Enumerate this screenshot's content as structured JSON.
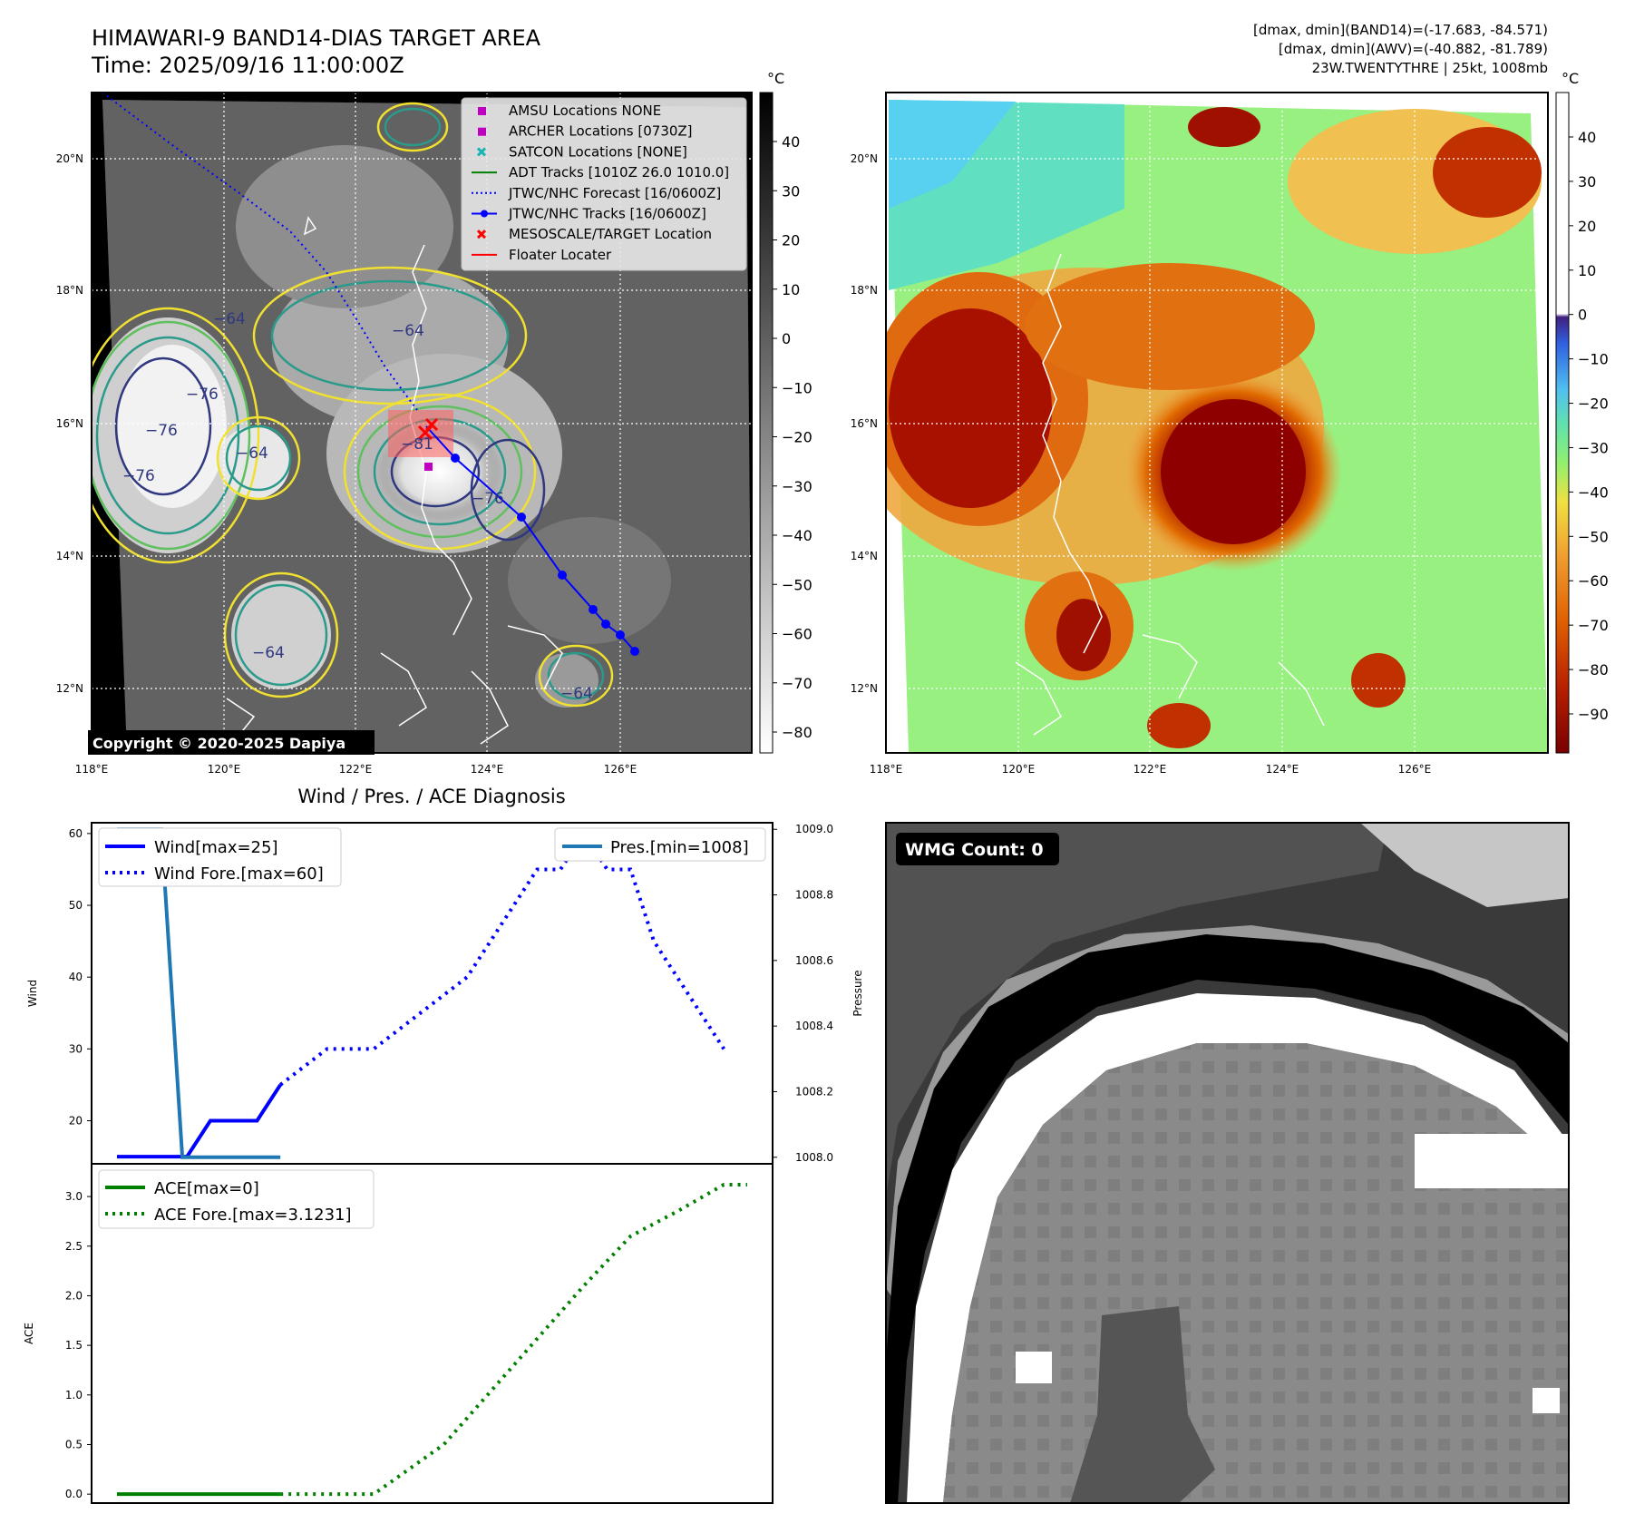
{
  "header": {
    "title_line1": "HIMAWARI-9 BAND14-DIAS TARGET AREA",
    "title_line2": "Time: 2025/09/16 11:00:00Z",
    "info_line1": "[dmax, dmin](BAND14)=(-17.683, -84.571)",
    "info_line2": "[dmax, dmin](AWV)=(-40.882, -81.789)",
    "info_line3": "23W.TWENTYTHRE | 25kt, 1008mb"
  },
  "map_ticks": {
    "lon": [
      "118°E",
      "120°E",
      "122°E",
      "124°E",
      "126°E"
    ],
    "lat": [
      "20°N",
      "18°N",
      "16°N",
      "14°N",
      "12°N"
    ]
  },
  "colorbar_ir": {
    "unit": "°C",
    "ticks": [
      "40",
      "30",
      "20",
      "10",
      "0",
      "−10",
      "−20",
      "−30",
      "−40",
      "−50",
      "−60",
      "−70",
      "−80"
    ]
  },
  "colorbar_wv": {
    "unit": "°C",
    "ticks": [
      "40",
      "30",
      "20",
      "10",
      "0",
      "−10",
      "−20",
      "−30",
      "−40",
      "−50",
      "−60",
      "−70",
      "−80",
      "−90"
    ]
  },
  "contour_labels": [
    "−64",
    "−76",
    "−76",
    "−76",
    "−64",
    "−64",
    "−81",
    "−76",
    "−64",
    "−64"
  ],
  "map_legend": {
    "entries": [
      {
        "label": "AMSU Locations NONE",
        "color": "#c000c0",
        "marker": "square"
      },
      {
        "label": "ARCHER Locations [0730Z]",
        "color": "#c000c0",
        "marker": "square"
      },
      {
        "label": "SATCON Locations [NONE]",
        "color": "#18b4b4",
        "marker": "x"
      },
      {
        "label": "ADT Tracks [1010Z 26.0 1010.0]",
        "color": "#008000",
        "marker": "line"
      },
      {
        "label": "JTWC/NHC Forecast [16/0600Z]",
        "color": "#0000ff",
        "marker": "dotted"
      },
      {
        "label": "JTWC/NHC Tracks [16/0600Z]",
        "color": "#0000ff",
        "marker": "line-dot"
      },
      {
        "label": "MESOSCALE/TARGET Location",
        "color": "#ff0000",
        "marker": "x"
      },
      {
        "label": "Floater Locater",
        "color": "#ff0000",
        "marker": "line"
      }
    ]
  },
  "copyright": "Copyright © 2020-2025 Dapiya",
  "wmg": {
    "label": "WMG Count: 0"
  },
  "chart_data": [
    {
      "type": "line",
      "title": "Wind / Pres. / ACE Diagnosis",
      "ylabel": "Wind",
      "y2label": "Pressure",
      "ylim": [
        14,
        61.5
      ],
      "y2lim": [
        1007.98,
        1009.02
      ],
      "yticks": [
        20,
        30,
        40,
        50,
        60
      ],
      "y2ticks": [
        "1008.0",
        "1008.2",
        "1008.4",
        "1008.6",
        "1008.8",
        "1009.0"
      ],
      "series": [
        {
          "name": "Wind[max=25]",
          "color": "#0000ff",
          "style": "solid",
          "axis": "left",
          "x": [
            0,
            1,
            2,
            3,
            4,
            5,
            6,
            7
          ],
          "values": [
            15,
            15,
            15,
            15,
            20,
            20,
            20,
            25
          ]
        },
        {
          "name": "Wind Fore.[max=60]",
          "color": "#0000ff",
          "style": "dotted",
          "axis": "left",
          "x": [
            7,
            9,
            11,
            12,
            13,
            15,
            16,
            18,
            19,
            20,
            21,
            22,
            23,
            24,
            25,
            26
          ],
          "values": [
            25,
            30,
            30,
            32.5,
            35,
            40,
            45,
            55,
            55,
            60,
            55,
            55,
            45,
            40,
            35,
            30
          ]
        },
        {
          "name": "Pres.[min=1008]",
          "color": "#1f77b4",
          "style": "solid",
          "axis": "right",
          "x": [
            0,
            1,
            1.9,
            2.8,
            3.5,
            7
          ],
          "values": [
            1009,
            1009,
            1009,
            1008,
            1008,
            1008
          ]
        }
      ],
      "xlim": [
        0,
        27
      ]
    },
    {
      "type": "line",
      "ylabel": "ACE",
      "ylim": [
        -0.09,
        3.33
      ],
      "yticks": [
        "0.0",
        "0.5",
        "1.0",
        "1.5",
        "2.0",
        "2.5",
        "3.0"
      ],
      "series": [
        {
          "name": "ACE[max=0]",
          "color": "#008000",
          "style": "solid",
          "x": [
            0,
            7
          ],
          "values": [
            0,
            0
          ]
        },
        {
          "name": "ACE Fore.[max=3.1231]",
          "color": "#008000",
          "style": "dotted",
          "x": [
            7,
            10,
            11,
            14,
            17,
            20,
            22,
            24,
            26,
            27
          ],
          "values": [
            0,
            0,
            0,
            0.5,
            1.3,
            2.1,
            2.6,
            2.85,
            3.12,
            3.12
          ]
        }
      ],
      "xlim": [
        0,
        27
      ]
    }
  ]
}
